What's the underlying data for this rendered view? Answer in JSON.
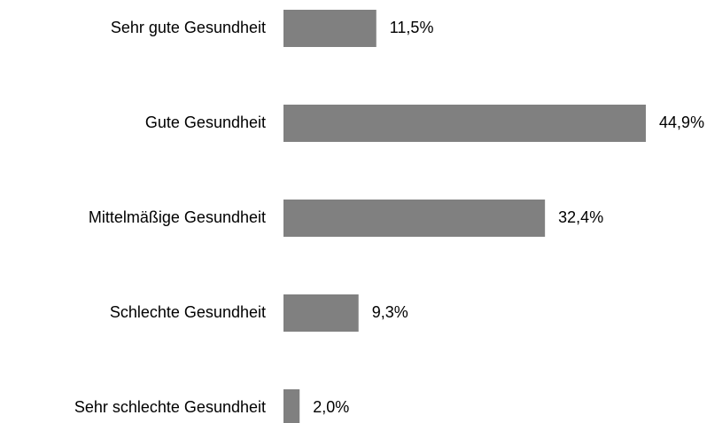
{
  "chart_data": {
    "type": "hbar",
    "categories": [
      "Sehr gute Gesundheit",
      "Gute Gesundheit",
      "Mittelmäßige Gesundheit",
      "Schlechte Gesundheit",
      "Sehr schlechte Gesundheit"
    ],
    "values": [
      11.5,
      44.9,
      32.4,
      9.3,
      2.0
    ],
    "value_labels": [
      "11,5%",
      "44,9%",
      "32,4%",
      "9,3%",
      "2,0%"
    ],
    "color": "#808080"
  }
}
